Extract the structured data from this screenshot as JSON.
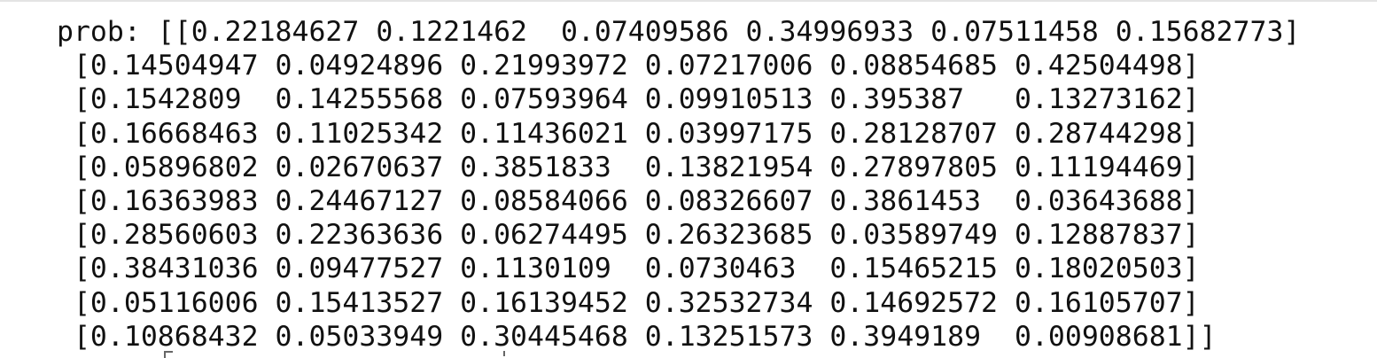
{
  "output": {
    "lines": [
      "prob: [[0.22184627 0.1221462  0.07409586 0.34996933 0.07511458 0.15682773]",
      " [0.14504947 0.04924896 0.21993972 0.07217006 0.08854685 0.42504498]",
      " [0.1542809  0.14255568 0.07593964 0.09910513 0.395387   0.13273162]",
      " [0.16668463 0.11025342 0.11436021 0.03997175 0.28128707 0.28744298]",
      " [0.05896802 0.02670637 0.3851833  0.13821954 0.27897805 0.11194469]",
      " [0.16363983 0.24467127 0.08584066 0.08326607 0.3861453  0.03643688]",
      " [0.28560603 0.22363636 0.06274495 0.26323685 0.03589749 0.12887837]",
      " [0.38431036 0.09477527 0.1130109  0.0730463  0.15465215 0.18020503]",
      " [0.05116006 0.15413527 0.16139452 0.32532734 0.14692572 0.16105707]",
      " [0.10868432 0.05033949 0.30445468 0.13251573 0.3949189  0.00908681]]"
    ]
  },
  "colors": {
    "text": "#111111",
    "background": "#ffffff",
    "border": "#e4e4e4"
  }
}
